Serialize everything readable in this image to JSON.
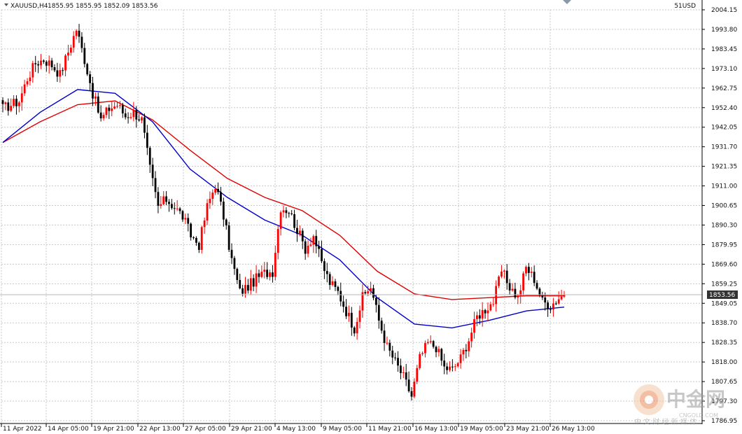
{
  "header": {
    "symbol_label": "XAUUSD,H4",
    "ohlc_label": "1855.95 1855.95 1852.09 1853.56",
    "top_right_label": "51USD"
  },
  "watermark": {
    "brand": "中金网",
    "domain": "CNGOLD.COM",
    "tagline": "中 文 财 经 新 媒 体"
  },
  "colors": {
    "bull": "#ff0000",
    "bear": "#000000",
    "ma_fast": "#0000c8",
    "ma_slow": "#e00000",
    "grid": "#c8c8c8",
    "price_box": "#333333"
  },
  "chart_data": {
    "type": "candlestick",
    "symbol": "XAUUSD",
    "timeframe": "H4",
    "last_price": 1853.56,
    "last_price_label": "1853.56",
    "ylim": [
      1786.95,
      2004.15
    ],
    "yticks": [
      "2004.15",
      "1993.80",
      "1983.45",
      "1973.10",
      "1962.75",
      "1952.40",
      "1942.05",
      "1931.70",
      "1921.35",
      "1911.00",
      "1900.65",
      "1890.30",
      "1879.95",
      "1869.60",
      "1859.25",
      "1849.05",
      "1838.70",
      "1828.35",
      "1818.00",
      "1807.65",
      "1797.30",
      "1786.95"
    ],
    "xticks": [
      "11 Apr 2022",
      "14 Apr 05:00",
      "19 Apr 21:00",
      "22 Apr 13:00",
      "27 Apr 05:00",
      "29 Apr 21:00",
      "4 May 13:00",
      "9 May 05:00",
      "11 May 21:00",
      "16 May 13:00",
      "19 May 05:00",
      "23 May 21:00",
      "26 May 13:00"
    ],
    "grid": true,
    "anchors": [
      [
        0,
        1952
      ],
      [
        3,
        1954
      ],
      [
        6,
        1956
      ],
      [
        9,
        1968
      ],
      [
        12,
        1976
      ],
      [
        15,
        1978
      ],
      [
        18,
        1975
      ],
      [
        21,
        1970
      ],
      [
        24,
        1982
      ],
      [
        27,
        1994
      ],
      [
        30,
        1978
      ],
      [
        33,
        1960
      ],
      [
        36,
        1946
      ],
      [
        39,
        1952
      ],
      [
        42,
        1954
      ],
      [
        45,
        1948
      ],
      [
        48,
        1950
      ],
      [
        51,
        1946
      ],
      [
        54,
        1920
      ],
      [
        57,
        1900
      ],
      [
        60,
        1904
      ],
      [
        63,
        1900
      ],
      [
        66,
        1895
      ],
      [
        69,
        1885
      ],
      [
        72,
        1880
      ],
      [
        75,
        1900
      ],
      [
        78,
        1912
      ],
      [
        81,
        1895
      ],
      [
        84,
        1872
      ],
      [
        87,
        1855
      ],
      [
        90,
        1858
      ],
      [
        93,
        1862
      ],
      [
        96,
        1865
      ],
      [
        99,
        1866
      ],
      [
        102,
        1900
      ],
      [
        105,
        1898
      ],
      [
        108,
        1888
      ],
      [
        111,
        1878
      ],
      [
        114,
        1885
      ],
      [
        117,
        1870
      ],
      [
        120,
        1860
      ],
      [
        123,
        1855
      ],
      [
        126,
        1845
      ],
      [
        129,
        1836
      ],
      [
        132,
        1852
      ],
      [
        135,
        1858
      ],
      [
        138,
        1840
      ],
      [
        141,
        1826
      ],
      [
        144,
        1818
      ],
      [
        147,
        1810
      ],
      [
        150,
        1800
      ],
      [
        153,
        1820
      ],
      [
        156,
        1828
      ],
      [
        159,
        1826
      ],
      [
        162,
        1815
      ],
      [
        165,
        1814
      ],
      [
        168,
        1820
      ],
      [
        171,
        1830
      ],
      [
        174,
        1842
      ],
      [
        177,
        1846
      ],
      [
        180,
        1850
      ],
      [
        183,
        1866
      ],
      [
        186,
        1858
      ],
      [
        189,
        1852
      ],
      [
        192,
        1868
      ],
      [
        195,
        1862
      ],
      [
        198,
        1850
      ],
      [
        201,
        1848
      ],
      [
        204,
        1852
      ],
      [
        206,
        1853.56
      ]
    ],
    "ma_fast_points": [
      [
        0,
        1934
      ],
      [
        20,
        1950
      ],
      [
        40,
        1962
      ],
      [
        60,
        1960
      ],
      [
        80,
        1945
      ],
      [
        100,
        1920
      ],
      [
        120,
        1905
      ],
      [
        140,
        1893
      ],
      [
        160,
        1885
      ],
      [
        180,
        1872
      ],
      [
        200,
        1852
      ],
      [
        220,
        1838
      ],
      [
        240,
        1836
      ],
      [
        260,
        1840
      ],
      [
        280,
        1845
      ],
      [
        300,
        1847
      ]
    ],
    "ma_slow_points": [
      [
        0,
        1934
      ],
      [
        20,
        1945
      ],
      [
        40,
        1954
      ],
      [
        60,
        1956
      ],
      [
        80,
        1946
      ],
      [
        100,
        1930
      ],
      [
        120,
        1915
      ],
      [
        140,
        1905
      ],
      [
        160,
        1898
      ],
      [
        180,
        1885
      ],
      [
        200,
        1866
      ],
      [
        220,
        1854
      ],
      [
        240,
        1851
      ],
      [
        260,
        1852
      ],
      [
        280,
        1853
      ],
      [
        300,
        1853
      ]
    ]
  }
}
